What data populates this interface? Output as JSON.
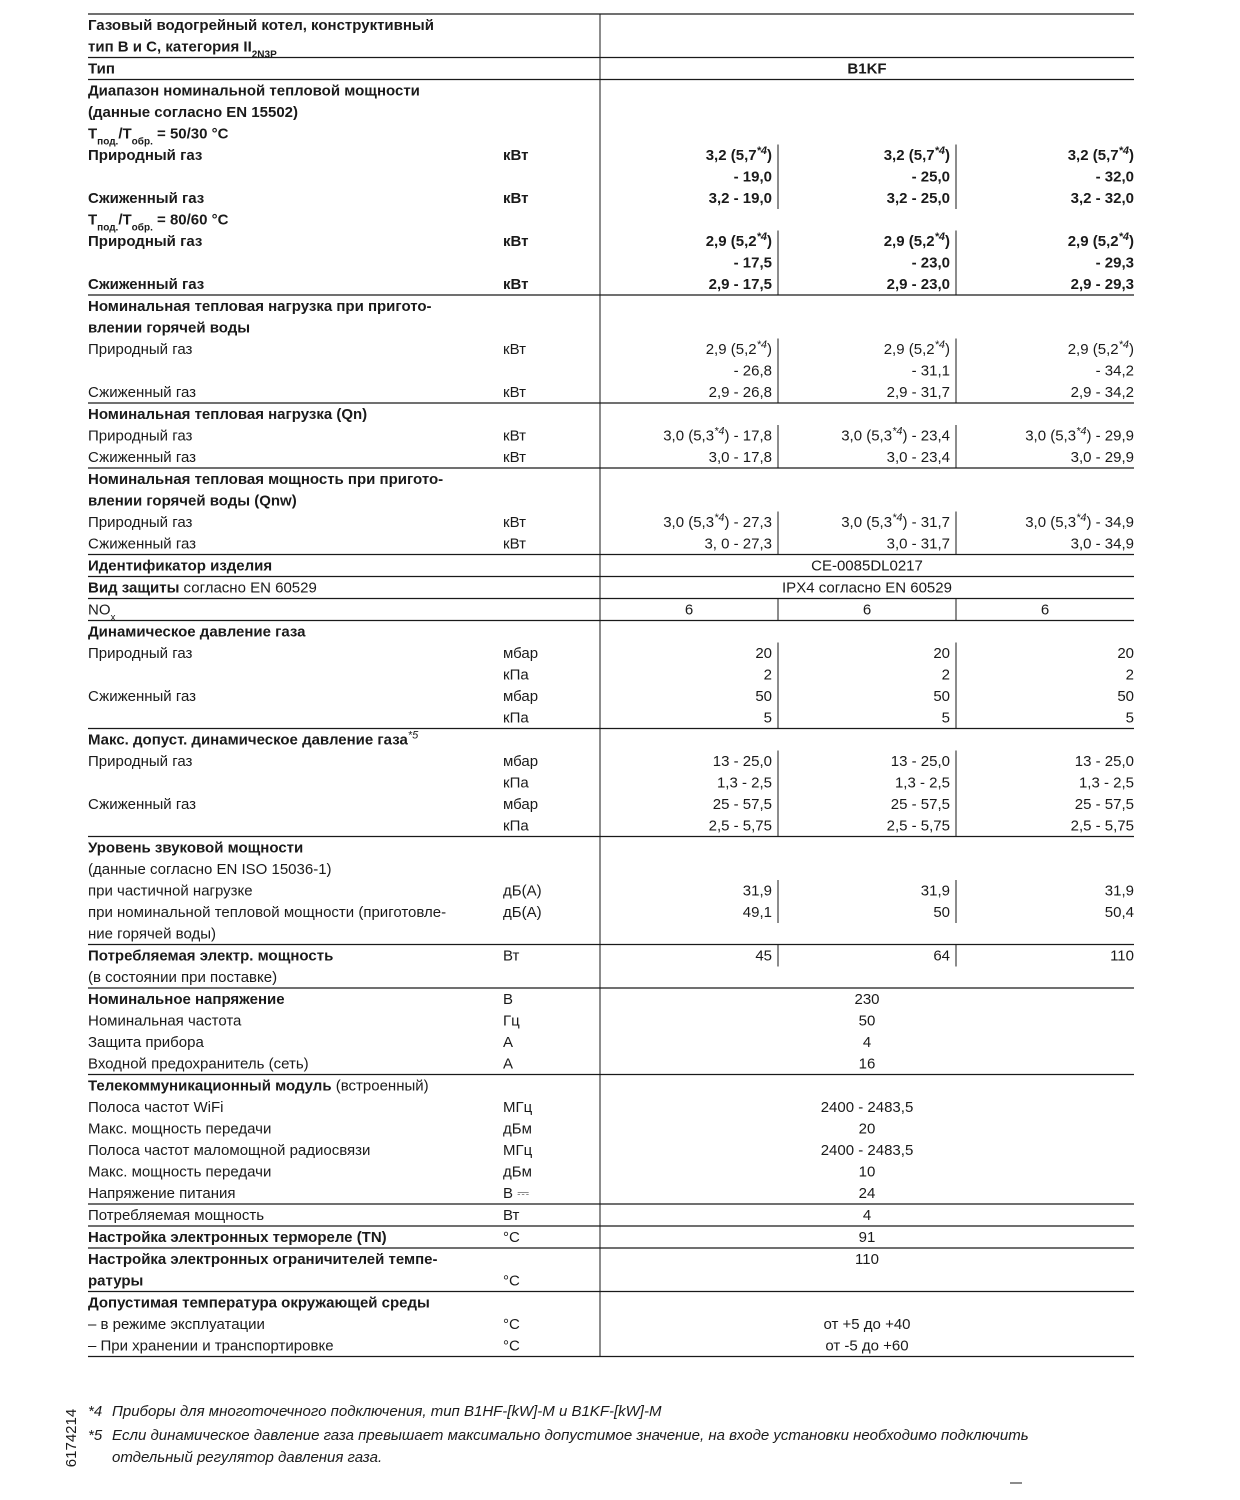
{
  "table": {
    "groups": [
      [
        {
          "label": "Газовый водогрейный котел, конструктивный",
          "bold": true
        },
        {
          "label": [
            "тип B и C, категория II",
            {
              "sub": "2N3P"
            }
          ],
          "bold": true
        }
      ],
      [
        {
          "label": "Тип",
          "value": "B1KF",
          "bold": true
        }
      ],
      [
        {
          "label": "Диапазон номинальной тепловой мощности",
          "bold": true
        },
        {
          "label": "(данные согласно EN 15502)",
          "bold": true
        },
        {
          "label": [
            "T",
            {
              "sub": "под."
            },
            "/T",
            {
              "sub": "обр."
            },
            " = 50/30 °C"
          ],
          "bold": true
        },
        {
          "label": "Природный газ",
          "unit": "кВт",
          "values": [
            [
              "3,2 (5,7",
              {
                "sup": "*4"
              },
              ")"
            ],
            [
              "3,2 (5,7",
              {
                "sup": "*4"
              },
              ")"
            ],
            [
              "3,2 (5,7",
              {
                "sup": "*4"
              },
              ")"
            ]
          ],
          "bold": true
        },
        {
          "values": [
            "- 19,0",
            "- 25,0",
            "- 32,0"
          ],
          "bold": true
        },
        {
          "label": "Сжиженный газ",
          "unit": "кВт",
          "values": [
            "3,2 - 19,0",
            "3,2 - 25,0",
            "3,2 - 32,0"
          ],
          "bold": true
        },
        {
          "label": [
            "T",
            {
              "sub": "под."
            },
            "/T",
            {
              "sub": "обр."
            },
            " = 80/60 °C"
          ],
          "bold": true
        },
        {
          "label": "Природный газ",
          "unit": "кВт",
          "values": [
            [
              "2,9 (5,2",
              {
                "sup": "*4"
              },
              ")"
            ],
            [
              "2,9 (5,2",
              {
                "sup": "*4"
              },
              ")"
            ],
            [
              "2,9 (5,2",
              {
                "sup": "*4"
              },
              ")"
            ]
          ],
          "bold": true
        },
        {
          "values": [
            "- 17,5",
            "- 23,0",
            "- 29,3"
          ],
          "bold": true
        },
        {
          "label": "Сжиженный газ",
          "unit": "кВт",
          "values": [
            "2,9 - 17,5",
            "2,9 - 23,0",
            "2,9 - 29,3"
          ],
          "bold": true
        }
      ],
      [
        {
          "label": "Номинальная тепловая нагрузка при пригото-",
          "bold": true
        },
        {
          "label": "влении горячей воды",
          "bold": true
        },
        {
          "label": "Природный газ",
          "unit": "кВт",
          "values": [
            [
              "2,9 (5,2",
              {
                "sup": "*4"
              },
              ")"
            ],
            [
              "2,9 (5,2",
              {
                "sup": "*4"
              },
              ")"
            ],
            [
              "2,9 (5,2",
              {
                "sup": "*4"
              },
              ")"
            ]
          ]
        },
        {
          "values": [
            "- 26,8",
            "- 31,1",
            "- 34,2"
          ]
        },
        {
          "label": "Сжиженный газ",
          "unit": "кВт",
          "values": [
            "2,9 - 26,8",
            "2,9 - 31,7",
            "2,9 - 34,2"
          ]
        }
      ],
      [
        {
          "label": "Номинальная тепловая нагрузка (Qn)",
          "bold": true
        },
        {
          "label": "Природный газ",
          "unit": "кВт",
          "values": [
            [
              "3,0 (5,3",
              {
                "sup": "*4"
              },
              ") - 17,8"
            ],
            [
              "3,0 (5,3",
              {
                "sup": "*4"
              },
              ") - 23,4"
            ],
            [
              "3,0 (5,3",
              {
                "sup": "*4"
              },
              ") - 29,9"
            ]
          ]
        },
        {
          "label": "Сжиженный газ",
          "unit": "кВт",
          "values": [
            "3,0 - 17,8",
            "3,0 - 23,4",
            "3,0 - 29,9"
          ]
        }
      ],
      [
        {
          "label": "Номинальная тепловая мощность при пригото-",
          "bold": true
        },
        {
          "label": "влении горячей воды (Qnw)",
          "bold": true
        },
        {
          "label": "Природный газ",
          "unit": "кВт",
          "values": [
            [
              "3,0 (5,3",
              {
                "sup": "*4"
              },
              ") - 27,3"
            ],
            [
              "3,0 (5,3",
              {
                "sup": "*4"
              },
              ") - 31,7"
            ],
            [
              "3,0 (5,3",
              {
                "sup": "*4"
              },
              ") - 34,9"
            ]
          ]
        },
        {
          "label": "Сжиженный газ",
          "unit": "кВт",
          "values": [
            "3, 0 - 27,3",
            "3,0 - 31,7",
            "3,0 - 34,9"
          ]
        }
      ],
      [
        {
          "label": [
            {
              "b": "Идентификатор изделия"
            }
          ],
          "value": "CE-0085DL0217"
        }
      ],
      [
        {
          "label": [
            {
              "b": "Вид защиты"
            },
            " согласно EN 60529"
          ],
          "value": "IPX4 согласно EN 60529"
        }
      ],
      [
        {
          "label": [
            "NO",
            {
              "sub": "x"
            }
          ],
          "values": [
            "6",
            "6",
            "6"
          ],
          "align": "center"
        }
      ],
      [
        {
          "label": "Динамическое давление газа",
          "bold": true
        },
        {
          "label": "Природный газ",
          "unit": "мбар",
          "values": [
            "20",
            "20",
            "20"
          ]
        },
        {
          "unit": "кПа",
          "values": [
            "2",
            "2",
            "2"
          ]
        },
        {
          "label": "Сжиженный газ",
          "unit": "мбар",
          "values": [
            "50",
            "50",
            "50"
          ]
        },
        {
          "unit": "кПа",
          "values": [
            "5",
            "5",
            "5"
          ]
        }
      ],
      [
        {
          "label": [
            {
              "b": "Макс. допуст. динамическое давление газа"
            },
            {
              "sup": "*5"
            }
          ]
        },
        {
          "label": "Природный газ",
          "unit": "мбар",
          "values": [
            "13 - 25,0",
            "13 - 25,0",
            "13 - 25,0"
          ]
        },
        {
          "unit": "кПа",
          "values": [
            "1,3 - 2,5",
            "1,3 - 2,5",
            "1,3 - 2,5"
          ]
        },
        {
          "label": "Сжиженный газ",
          "unit": "мбар",
          "values": [
            "25 - 57,5",
            "25 - 57,5",
            "25 - 57,5"
          ]
        },
        {
          "unit": "кПа",
          "values": [
            "2,5 - 5,75",
            "2,5 - 5,75",
            "2,5 - 5,75"
          ]
        }
      ],
      [
        {
          "label": "Уровень звуковой мощности",
          "bold": true
        },
        {
          "label": "(данные согласно EN ISO 15036-1)"
        },
        {
          "label": "при частичной нагрузке",
          "unit": "дБ(A)",
          "values": [
            "31,9",
            "31,9",
            "31,9"
          ]
        },
        {
          "label": "при номинальной тепловой мощности (приготовле-",
          "unit": "дБ(A)",
          "values": [
            "49,1",
            "50",
            "50,4"
          ]
        },
        {
          "label": "ние горячей воды)"
        }
      ],
      [
        {
          "label": [
            {
              "b": "Потребляемая электр. мощность"
            }
          ],
          "unit": "Вт",
          "values": [
            "45",
            "64",
            "110"
          ]
        },
        {
          "label": "(в состоянии при поставке)"
        }
      ],
      [
        {
          "label": [
            {
              "b": "Номинальное напряжение"
            }
          ],
          "unit": "В",
          "value": "230"
        },
        {
          "label": "Номинальная частота",
          "unit": "Гц",
          "value": "50"
        },
        {
          "label": "Защита прибора",
          "unit": "А",
          "value": "4"
        },
        {
          "label": "Входной предохранитель (сеть)",
          "unit": "А",
          "value": "16"
        }
      ],
      [
        {
          "label": [
            {
              "b": "Телекоммуникационный модуль"
            },
            " (встроенный)"
          ]
        },
        {
          "label": "Полоса частот WiFi",
          "unit": "МГц",
          "value": "2400 - 2483,5"
        },
        {
          "label": "Макс. мощность передачи",
          "unit": "дБм",
          "value": "20"
        },
        {
          "label": "Полоса частот маломощной радиосвязи",
          "unit": "МГц",
          "value": "2400 - 2483,5"
        },
        {
          "label": "Макс. мощность передачи",
          "unit": "дБм",
          "value": "10"
        },
        {
          "label": "Напряжение питания",
          "unit": "В ⎓",
          "value": "24"
        }
      ],
      [
        {
          "label": "Потребляемая мощность",
          "unit": "Вт",
          "value": "4"
        }
      ],
      [
        {
          "label": [
            {
              "b": "Настройка электронных термореле (TN)"
            }
          ],
          "unit": "°C",
          "value": "91"
        }
      ],
      [
        {
          "label": [
            {
              "b": "Настройка электронных ограничителей темпе-"
            }
          ],
          "value": "110"
        },
        {
          "label": [
            {
              "b": "ратуры"
            }
          ],
          "unit": "°C"
        }
      ],
      [
        {
          "label": "Допустимая температура окружающей среды",
          "bold": true
        },
        {
          "label": "– в режиме эксплуатации",
          "unit": "°C",
          "value": "от +5 до +40"
        },
        {
          "label": "– При хранении и транспортировке",
          "unit": "°C",
          "value": "от -5 до +60"
        }
      ]
    ]
  },
  "footnotes": [
    {
      "mark": "*4",
      "lines": [
        "Приборы для многоточечного подключения, тип B1HF-[kW]-M и B1KF-[kW]-M"
      ]
    },
    {
      "mark": "*5",
      "lines": [
        "Если динамическое давление газа превышает максимально допустимое значение, на входе установки необходимо подключить",
        "отдельный регулятор давления газа."
      ]
    }
  ],
  "doc_number": "6174214"
}
